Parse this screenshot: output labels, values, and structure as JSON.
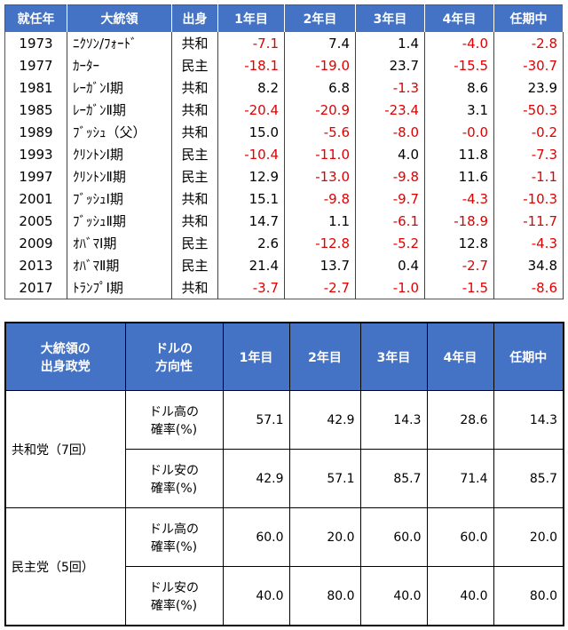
{
  "table1": {
    "header": [
      "就任年",
      "大統領",
      "出身",
      "1年目",
      "2年目",
      "3年目",
      "4年目",
      "任期中"
    ],
    "rows": [
      [
        "1973",
        "ﾆｸｿﾝ/ﾌｫｰﾄﾞ",
        "共和",
        "-7.1",
        "7.4",
        "1.4",
        "-4.0",
        "-2.8"
      ],
      [
        "1977",
        "ｶｰﾀｰ",
        "民主",
        "-18.1",
        "-19.0",
        "23.7",
        "-15.5",
        "-30.7"
      ],
      [
        "1981",
        "ﾚｰｶﾞﾝⅠ期",
        "共和",
        "8.2",
        "6.8",
        "-1.3",
        "8.6",
        "23.9"
      ],
      [
        "1985",
        "ﾚｰｶﾞﾝⅡ期",
        "共和",
        "-20.4",
        "-20.9",
        "-23.4",
        "3.1",
        "-50.3"
      ],
      [
        "1989",
        "ﾌﾞｯｼｭ（父）",
        "共和",
        "15.0",
        "-5.6",
        "-8.0",
        "-0.0",
        "-0.2"
      ],
      [
        "1993",
        "ｸﾘﾝﾄﾝⅠ期",
        "民主",
        "-10.4",
        "-11.0",
        "4.0",
        "11.8",
        "-7.3"
      ],
      [
        "1997",
        "ｸﾘﾝﾄﾝⅡ期",
        "民主",
        "12.9",
        "-13.0",
        "-9.8",
        "11.6",
        "-1.1"
      ],
      [
        "2001",
        "ﾌﾞｯｼｭⅠ期",
        "共和",
        "15.1",
        "-9.8",
        "-9.7",
        "-4.3",
        "-10.3"
      ],
      [
        "2005",
        "ﾌﾞｯｼｭⅡ期",
        "共和",
        "14.7",
        "1.1",
        "-6.1",
        "-18.9",
        "-11.7"
      ],
      [
        "2009",
        "ｵﾊﾞﾏⅠ期",
        "民主",
        "2.6",
        "-12.8",
        "-5.2",
        "12.8",
        "-4.3"
      ],
      [
        "2013",
        "ｵﾊﾞﾏⅡ期",
        "民主",
        "21.4",
        "13.7",
        "0.4",
        "-2.7",
        "34.8"
      ],
      [
        "2017",
        "ﾄﾗﾝﾌﾟⅠ期",
        "共和",
        "-3.7",
        "-2.7",
        "-1.0",
        "-1.5",
        "-8.6"
      ]
    ]
  },
  "table2": {
    "header": [
      [
        "大統領の",
        "出身政党"
      ],
      [
        "ドルの",
        "方向性"
      ],
      [
        "1年目"
      ],
      [
        "2年目"
      ],
      [
        "3年目"
      ],
      [
        "4年目"
      ],
      [
        "任期中"
      ]
    ],
    "groups": [
      {
        "party": "共和党（7回）",
        "rows": [
          {
            "label": [
              "ドル高の",
              "確率(%)"
            ],
            "values": [
              "57.1",
              "42.9",
              "14.3",
              "28.6",
              "14.3"
            ]
          },
          {
            "label": [
              "ドル安の",
              "確率(%)"
            ],
            "values": [
              "42.9",
              "57.1",
              "85.7",
              "71.4",
              "85.7"
            ]
          }
        ]
      },
      {
        "party": "民主党（5回）",
        "rows": [
          {
            "label": [
              "ドル高の",
              "確率(%)"
            ],
            "values": [
              "60.0",
              "20.0",
              "60.0",
              "60.0",
              "20.0"
            ]
          },
          {
            "label": [
              "ドル安の",
              "確率(%)"
            ],
            "values": [
              "40.0",
              "80.0",
              "40.0",
              "40.0",
              "80.0"
            ]
          }
        ]
      }
    ]
  }
}
